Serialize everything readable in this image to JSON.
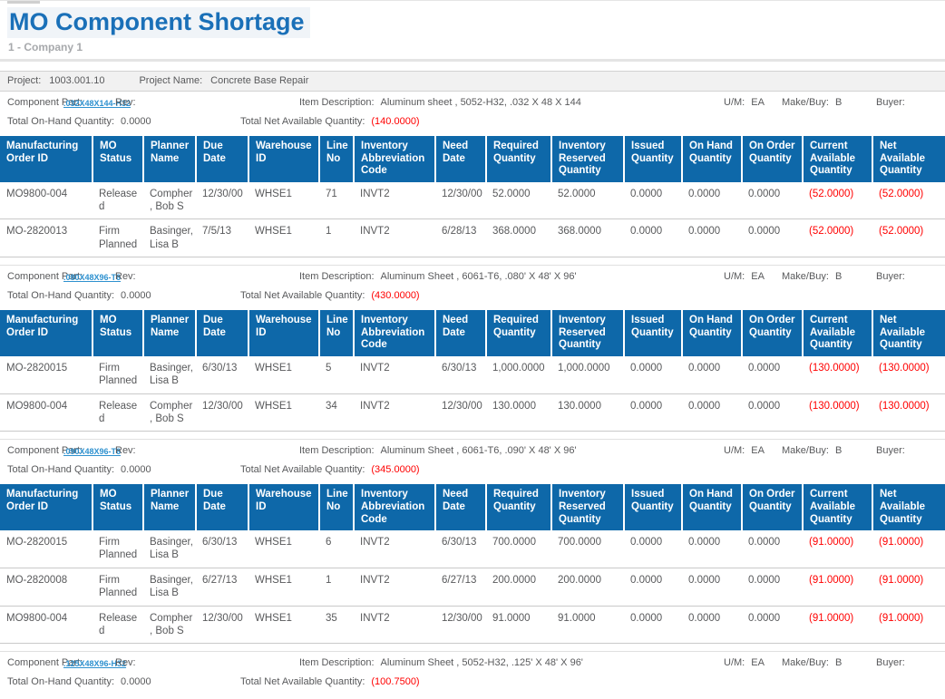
{
  "page": {
    "title": "MO Component Shortage",
    "company": "1 - Company 1"
  },
  "project_bar": {
    "project_label": "Project:",
    "project_number": "1003.001.10",
    "project_name_label": "Project Name:",
    "project_name": "Concrete Base Repair"
  },
  "labels": {
    "component_part": "Component Part:",
    "rev": "Rev:",
    "item_description": "Item Description:",
    "um": "U/M:",
    "make_buy": "Make/Buy:",
    "buyer": "Buyer:",
    "total_on_hand": "Total On-Hand Quantity:",
    "total_net_available": "Total Net Available Quantity:"
  },
  "table": {
    "headers": [
      "Manufacturing Order ID",
      "MO Status",
      "Planner Name",
      "Due Date",
      "Warehouse ID",
      "Line No",
      "Inventory Abbreviation Code",
      "Need Date",
      "Required Quantity",
      "Inventory Reserved Quantity",
      "Issued Quantity",
      "On Hand Quantity",
      "On Order Quantity",
      "Current Available Quantity",
      "Net Available Quantity"
    ]
  },
  "sections": [
    {
      "part": ".032X48X144-H32",
      "rev": "",
      "description": "Aluminum sheet , 5052-H32, .032 X 48 X 144",
      "um": "EA",
      "make_buy": "B",
      "buyer": "",
      "total_on_hand": "0.0000",
      "total_net_available": "(140.0000)",
      "rows": [
        [
          "MO9800-004",
          "Released",
          "Compher, Bob S",
          "12/30/00",
          "WHSE1",
          "71",
          "INVT2",
          "12/30/00",
          "52.0000",
          "52.0000",
          "0.0000",
          "0.0000",
          "0.0000",
          "(52.0000)",
          "(52.0000)"
        ],
        [
          "MO-2820013",
          "Firm Planned",
          "Basinger, Lisa B",
          "7/5/13",
          "WHSE1",
          "1",
          "INVT2",
          "6/28/13",
          "368.0000",
          "368.0000",
          "0.0000",
          "0.0000",
          "0.0000",
          "(52.0000)",
          "(52.0000)"
        ]
      ]
    },
    {
      "part": ".080X48X96-T6",
      "rev": "",
      "description": "Aluminum Sheet , 6061-T6, .080' X 48' X 96'",
      "um": "EA",
      "make_buy": "B",
      "buyer": "",
      "total_on_hand": "0.0000",
      "total_net_available": "(430.0000)",
      "rows": [
        [
          "MO-2820015",
          "Firm Planned",
          "Basinger, Lisa B",
          "6/30/13",
          "WHSE1",
          "5",
          "INVT2",
          "6/30/13",
          "1,000.0000",
          "1,000.0000",
          "0.0000",
          "0.0000",
          "0.0000",
          "(130.0000)",
          "(130.0000)"
        ],
        [
          "MO9800-004",
          "Released",
          "Compher, Bob S",
          "12/30/00",
          "WHSE1",
          "34",
          "INVT2",
          "12/30/00",
          "130.0000",
          "130.0000",
          "0.0000",
          "0.0000",
          "0.0000",
          "(130.0000)",
          "(130.0000)"
        ]
      ]
    },
    {
      "part": ".090X48X96-T6",
      "rev": "",
      "description": "Aluminum Sheet , 6061-T6, .090' X 48' X 96'",
      "um": "EA",
      "make_buy": "B",
      "buyer": "",
      "total_on_hand": "0.0000",
      "total_net_available": "(345.0000)",
      "rows": [
        [
          "MO-2820015",
          "Firm Planned",
          "Basinger, Lisa B",
          "6/30/13",
          "WHSE1",
          "6",
          "INVT2",
          "6/30/13",
          "700.0000",
          "700.0000",
          "0.0000",
          "0.0000",
          "0.0000",
          "(91.0000)",
          "(91.0000)"
        ],
        [
          "MO-2820008",
          "Firm Planned",
          "Basinger, Lisa B",
          "6/27/13",
          "WHSE1",
          "1",
          "INVT2",
          "6/27/13",
          "200.0000",
          "200.0000",
          "0.0000",
          "0.0000",
          "0.0000",
          "(91.0000)",
          "(91.0000)"
        ],
        [
          "MO9800-004",
          "Released",
          "Compher, Bob S",
          "12/30/00",
          "WHSE1",
          "35",
          "INVT2",
          "12/30/00",
          "91.0000",
          "91.0000",
          "0.0000",
          "0.0000",
          "0.0000",
          "(91.0000)",
          "(91.0000)"
        ]
      ]
    },
    {
      "part": ".125X48X96-H32",
      "rev": "",
      "description": "Aluminum Sheet , 5052-H32, .125' X 48' X 96'",
      "um": "EA",
      "make_buy": "B",
      "buyer": "",
      "total_on_hand": "0.0000",
      "total_net_available": "(100.7500)",
      "rows": []
    }
  ],
  "colors": {
    "header_blue": "#0e68a9",
    "title_blue": "#1a70b8",
    "link_blue": "#2e91cf",
    "negative_red": "#ff0000"
  }
}
